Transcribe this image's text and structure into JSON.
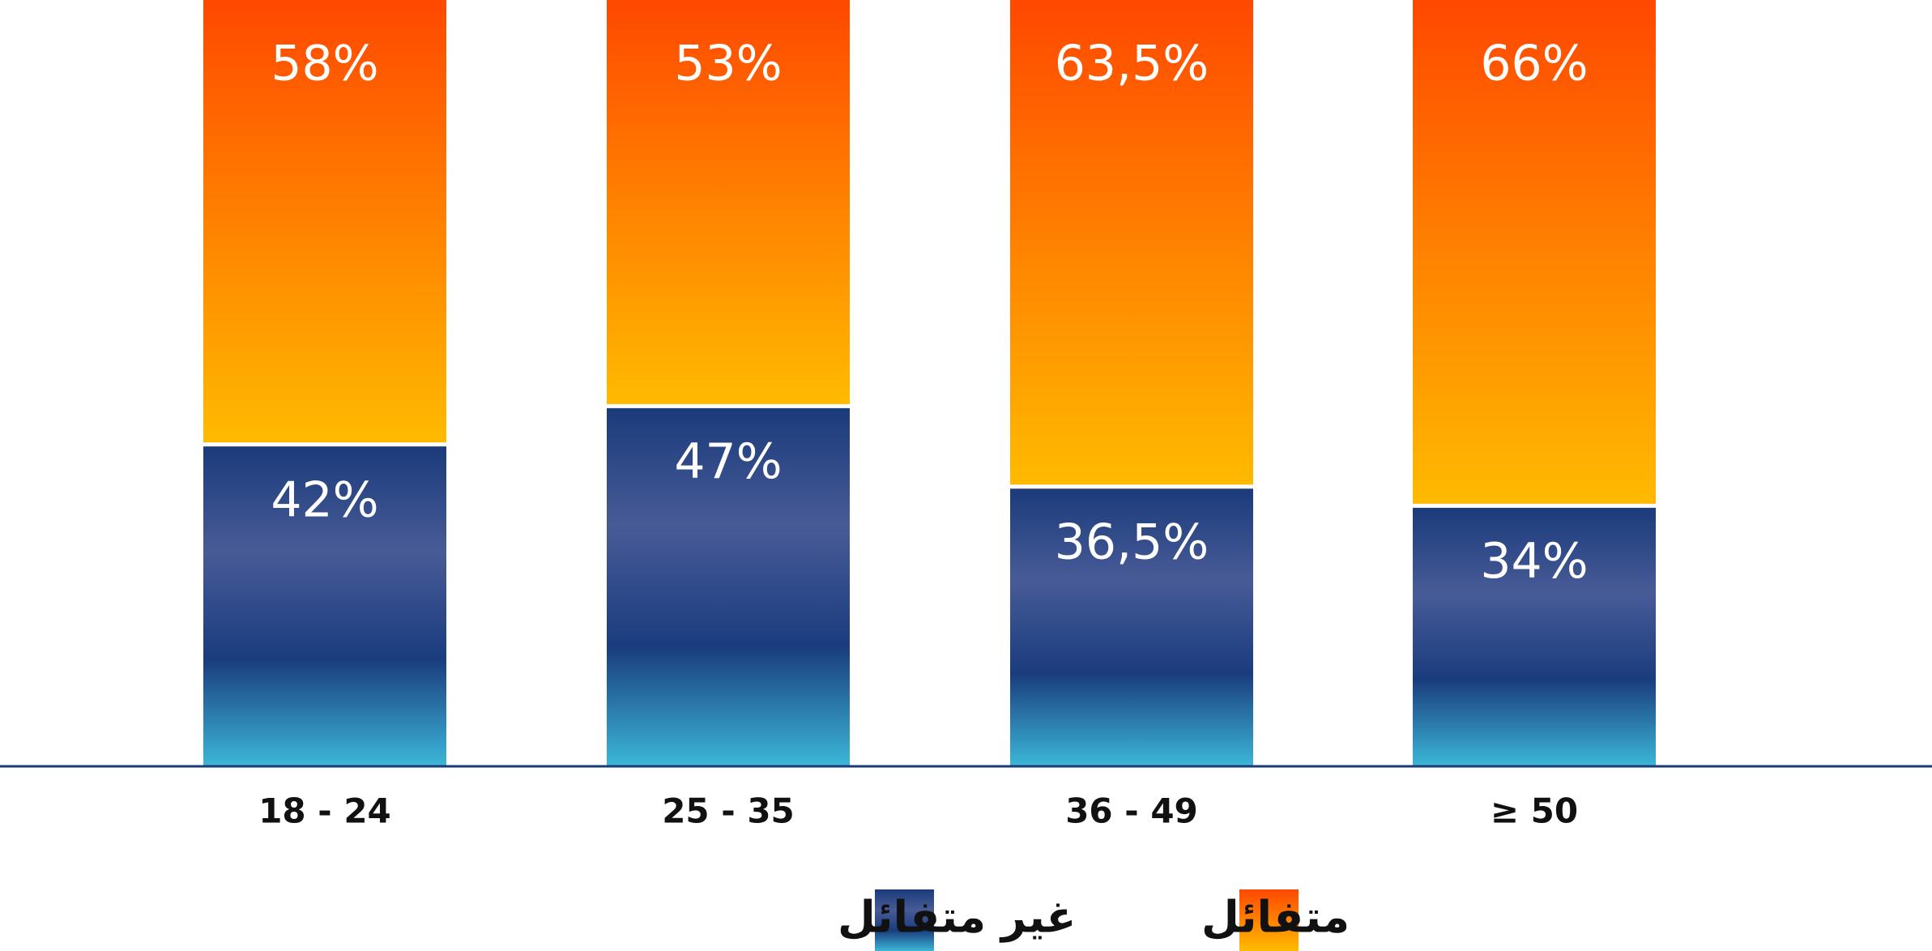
{
  "chart_data": {
    "type": "stacked-bar",
    "categories": [
      "18 - 24",
      "25 - 35",
      "36 - 49",
      "≥ 50"
    ],
    "series": [
      {
        "name": "غير متفائل",
        "color": "#1b3e80",
        "gradient": [
          "#1a3a7a",
          "#485b97",
          "#1a3c7e",
          "#3cb7d8"
        ],
        "values": [
          42,
          47,
          36.5,
          34
        ],
        "value_labels": [
          "42%",
          "47%",
          "36,5%",
          "34%"
        ]
      },
      {
        "name": "متفائل",
        "color": "#ff7a00",
        "gradient": [
          "#ff4800",
          "#ffbb00"
        ],
        "values": [
          58,
          53,
          63.5,
          66
        ],
        "value_labels": [
          "58%",
          "53%",
          "63,5%",
          "66%"
        ]
      }
    ],
    "ylim": [
      0,
      100
    ]
  }
}
